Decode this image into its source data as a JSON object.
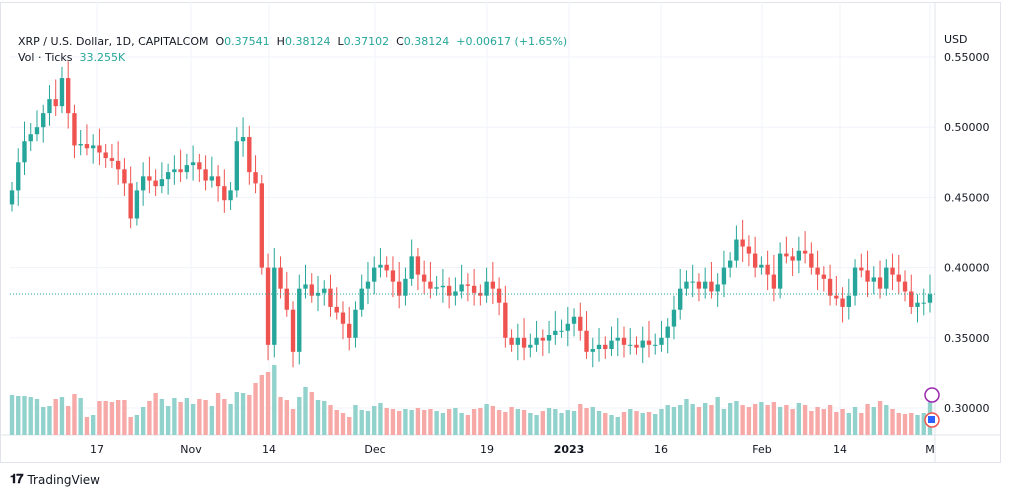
{
  "header": {
    "symbol": "XRP / U.S. Dollar, 1D, CAPITALCOM",
    "o_label": "O",
    "o": "0.37541",
    "h_label": "H",
    "h": "0.38124",
    "l_label": "L",
    "l": "0.37102",
    "c_label": "C",
    "c": "0.38124",
    "change": "+0.00617 (+1.65%)",
    "vol_label": "Vol · Ticks",
    "vol": "33.255K"
  },
  "currency": "USD",
  "branding": "TradingView",
  "colors": {
    "up": "#26a69a",
    "down": "#ef5350",
    "up_vol": "#92d2cc",
    "down_vol": "#f7a9a7",
    "grid": "#f0f3fa"
  },
  "chart_data": {
    "type": "candlestick",
    "title": "XRP / U.S. Dollar, 1D, CAPITALCOM",
    "ylim": [
      0.28,
      0.56
    ],
    "y_ticks": [
      "0.30000",
      "0.35000",
      "0.40000",
      "0.45000",
      "0.50000",
      "0.55000"
    ],
    "x_ticks": [
      "17",
      "Nov",
      "14",
      "Dec",
      "19",
      "2023",
      "16",
      "Feb",
      "14",
      "M"
    ],
    "last_price": 0.38124,
    "first_open": 0.445,
    "close": [
      0.455,
      0.475,
      0.49,
      0.495,
      0.5,
      0.51,
      0.52,
      0.515,
      0.535,
      0.51,
      0.487,
      0.488,
      0.485,
      0.487,
      0.482,
      0.478,
      0.476,
      0.47,
      0.46,
      0.435,
      0.455,
      0.465,
      0.462,
      0.458,
      0.463,
      0.468,
      0.47,
      0.468,
      0.473,
      0.475,
      0.47,
      0.462,
      0.465,
      0.458,
      0.448,
      0.455,
      0.49,
      0.493,
      0.468,
      0.46,
      0.4,
      0.345,
      0.4,
      0.385,
      0.37,
      0.34,
      0.385,
      0.388,
      0.38,
      0.382,
      0.385,
      0.372,
      0.368,
      0.36,
      0.35,
      0.37,
      0.385,
      0.39,
      0.4,
      0.402,
      0.398,
      0.39,
      0.38,
      0.392,
      0.408,
      0.395,
      0.39,
      0.385,
      0.386,
      0.387,
      0.38,
      0.383,
      0.388,
      0.387,
      0.382,
      0.38,
      0.39,
      0.385,
      0.375,
      0.35,
      0.345,
      0.35,
      0.343,
      0.345,
      0.35,
      0.348,
      0.352,
      0.355,
      0.355,
      0.36,
      0.365,
      0.355,
      0.34,
      0.342,
      0.345,
      0.342,
      0.348,
      0.35,
      0.345,
      0.345,
      0.343,
      0.348,
      0.345,
      0.345,
      0.35,
      0.358,
      0.37,
      0.385,
      0.39,
      0.39,
      0.385,
      0.39,
      0.383,
      0.388,
      0.4,
      0.405,
      0.42,
      0.415,
      0.41,
      0.4,
      0.402,
      0.395,
      0.385,
      0.41,
      0.408,
      0.405,
      0.412,
      0.41,
      0.4,
      0.395,
      0.392,
      0.38,
      0.378,
      0.372,
      0.38,
      0.4,
      0.398,
      0.39,
      0.393,
      0.385,
      0.4,
      0.395,
      0.39,
      0.383,
      0.372,
      0.375,
      0.375,
      0.381
    ],
    "volume": [
      40,
      39,
      39,
      38,
      36,
      28,
      29,
      36,
      38,
      29,
      41,
      37,
      18,
      20,
      34,
      34,
      33,
      35,
      35,
      18,
      20,
      28,
      34,
      42,
      36,
      29,
      37,
      33,
      37,
      31,
      36,
      35,
      29,
      42,
      36,
      31,
      43,
      42,
      40,
      52,
      60,
      63,
      70,
      38,
      35,
      26,
      38,
      48,
      43,
      35,
      34,
      30,
      25,
      22,
      18,
      30,
      25,
      24,
      29,
      32,
      27,
      26,
      24,
      26,
      25,
      27,
      25,
      26,
      24,
      22,
      26,
      27,
      22,
      20,
      26,
      27,
      31,
      29,
      25,
      23,
      28,
      26,
      25,
      22,
      20,
      24,
      27,
      26,
      22,
      25,
      24,
      31,
      27,
      28,
      24,
      22,
      20,
      18,
      23,
      26,
      24,
      22,
      23,
      21,
      26,
      30,
      28,
      30,
      36,
      31,
      28,
      32,
      30,
      38,
      26,
      32,
      34,
      30,
      28,
      31,
      33,
      30,
      33,
      28,
      30,
      26,
      32,
      30,
      24,
      28,
      26,
      30,
      23,
      26,
      22,
      28,
      22,
      31,
      28,
      34,
      30,
      26,
      22,
      21,
      22,
      20,
      22,
      33
    ]
  }
}
